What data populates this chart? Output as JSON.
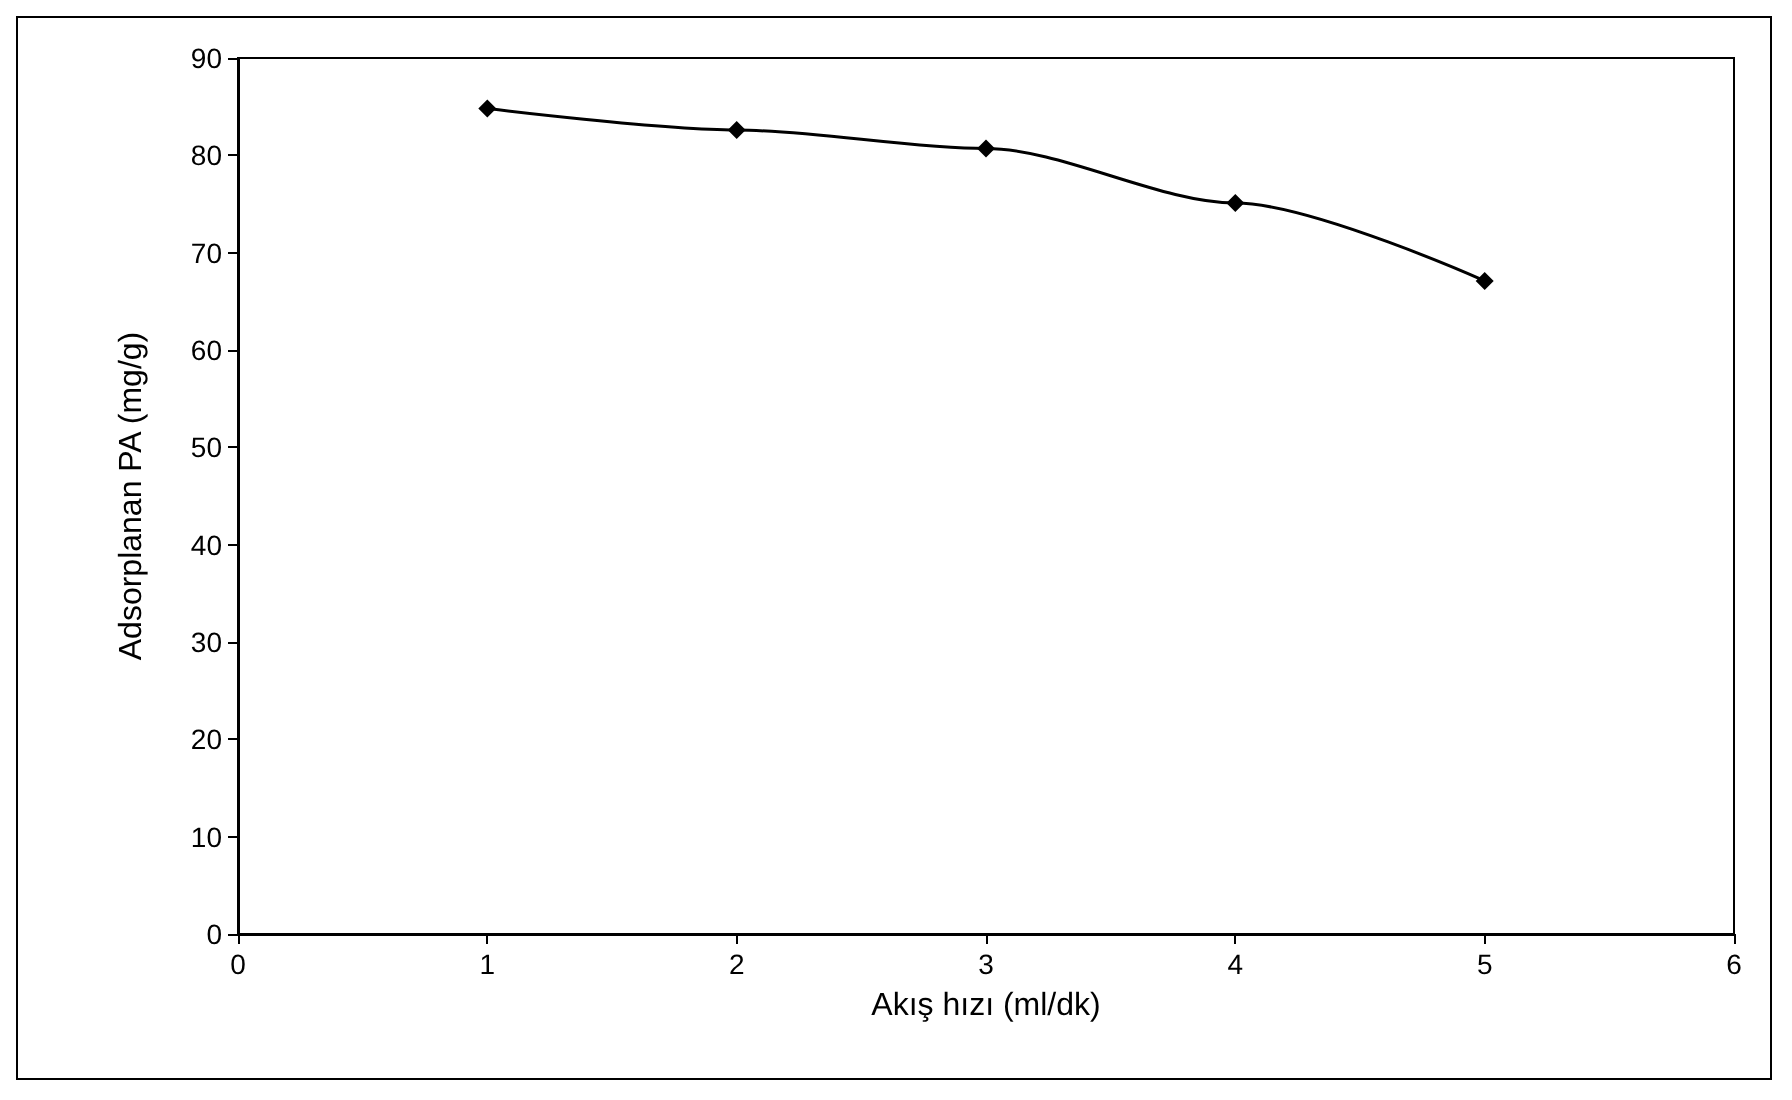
{
  "chart_data": {
    "type": "line",
    "xlabel": "Akış hızı (ml/dk)",
    "ylabel": "Adsorplanan PA (mg/g)",
    "x": [
      1,
      2,
      3,
      4,
      5
    ],
    "series": [
      {
        "color": "#000000",
        "values": [
          84.8,
          82.6,
          80.7,
          75.1,
          67.1
        ]
      }
    ],
    "xlim": [
      0,
      6
    ],
    "xticks": [
      0,
      1,
      2,
      3,
      4,
      5,
      6
    ],
    "ylim": [
      0,
      90
    ],
    "yticks": [
      0,
      10,
      20,
      30,
      40,
      50,
      60,
      70,
      80,
      90
    ],
    "grid": false,
    "marker": "diamond",
    "line_style": "solid"
  }
}
